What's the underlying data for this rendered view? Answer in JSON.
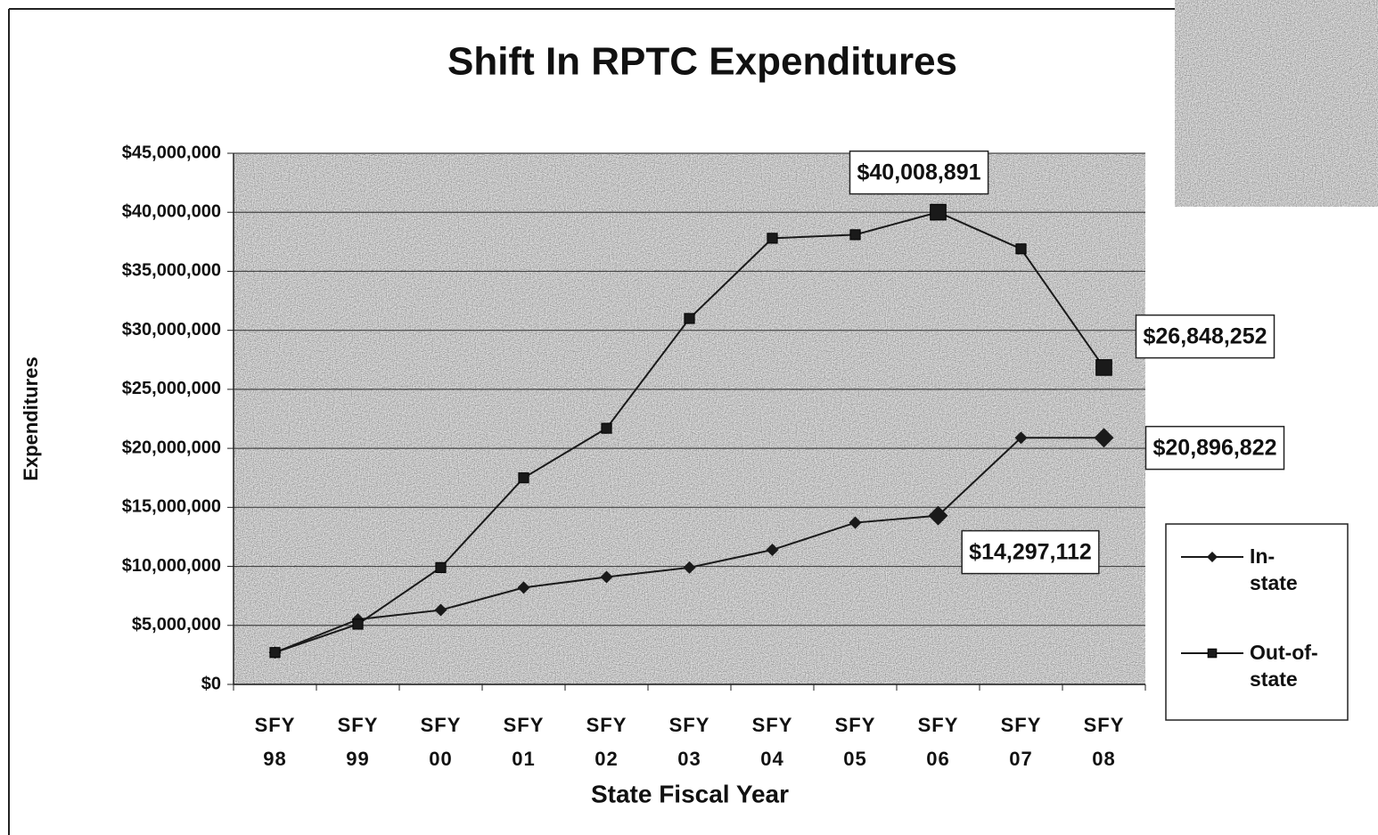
{
  "chart_data": {
    "type": "line",
    "title": "Shift In RPTC Expenditures",
    "x_label": "State Fiscal Year",
    "y_label": "Expenditures",
    "categories": [
      "SFY 98",
      "SFY 99",
      "SFY 00",
      "SFY 01",
      "SFY 02",
      "SFY 03",
      "SFY 04",
      "SFY 05",
      "SFY 06",
      "SFY 07",
      "SFY 08"
    ],
    "ylim": [
      0,
      45000000
    ],
    "yticks": [
      {
        "value": 0,
        "label": "$0"
      },
      {
        "value": 5000000,
        "label": "$5,000,000"
      },
      {
        "value": 10000000,
        "label": "$10,000,000"
      },
      {
        "value": 15000000,
        "label": "$15,000,000"
      },
      {
        "value": 20000000,
        "label": "$20,000,000"
      },
      {
        "value": 25000000,
        "label": "$25,000,000"
      },
      {
        "value": 30000000,
        "label": "$30,000,000"
      },
      {
        "value": 35000000,
        "label": "$35,000,000"
      },
      {
        "value": 40000000,
        "label": "$40,000,000"
      },
      {
        "value": 45000000,
        "label": "$45,000,000"
      }
    ],
    "grid": true,
    "legend": "right",
    "series": [
      {
        "name": "In-state",
        "color": "#1a1a1a",
        "marker": "diamond",
        "values": [
          2700000,
          5500000,
          6300000,
          8200000,
          9100000,
          9900000,
          11400000,
          13700000,
          14297112,
          20900000,
          20896822
        ],
        "value_labels": [
          null,
          null,
          null,
          null,
          null,
          null,
          null,
          null,
          "$14,297,112",
          null,
          "$20,896,822"
        ]
      },
      {
        "name": "Out-of-state",
        "color": "#1a1a1a",
        "marker": "square",
        "values": [
          2700000,
          5100000,
          9900000,
          17500000,
          21700000,
          31000000,
          37800000,
          38100000,
          40008891,
          36900000,
          26848252
        ],
        "value_labels": [
          null,
          null,
          null,
          null,
          null,
          null,
          null,
          null,
          "$40,008,891",
          null,
          "$26,848,252"
        ]
      }
    ]
  }
}
